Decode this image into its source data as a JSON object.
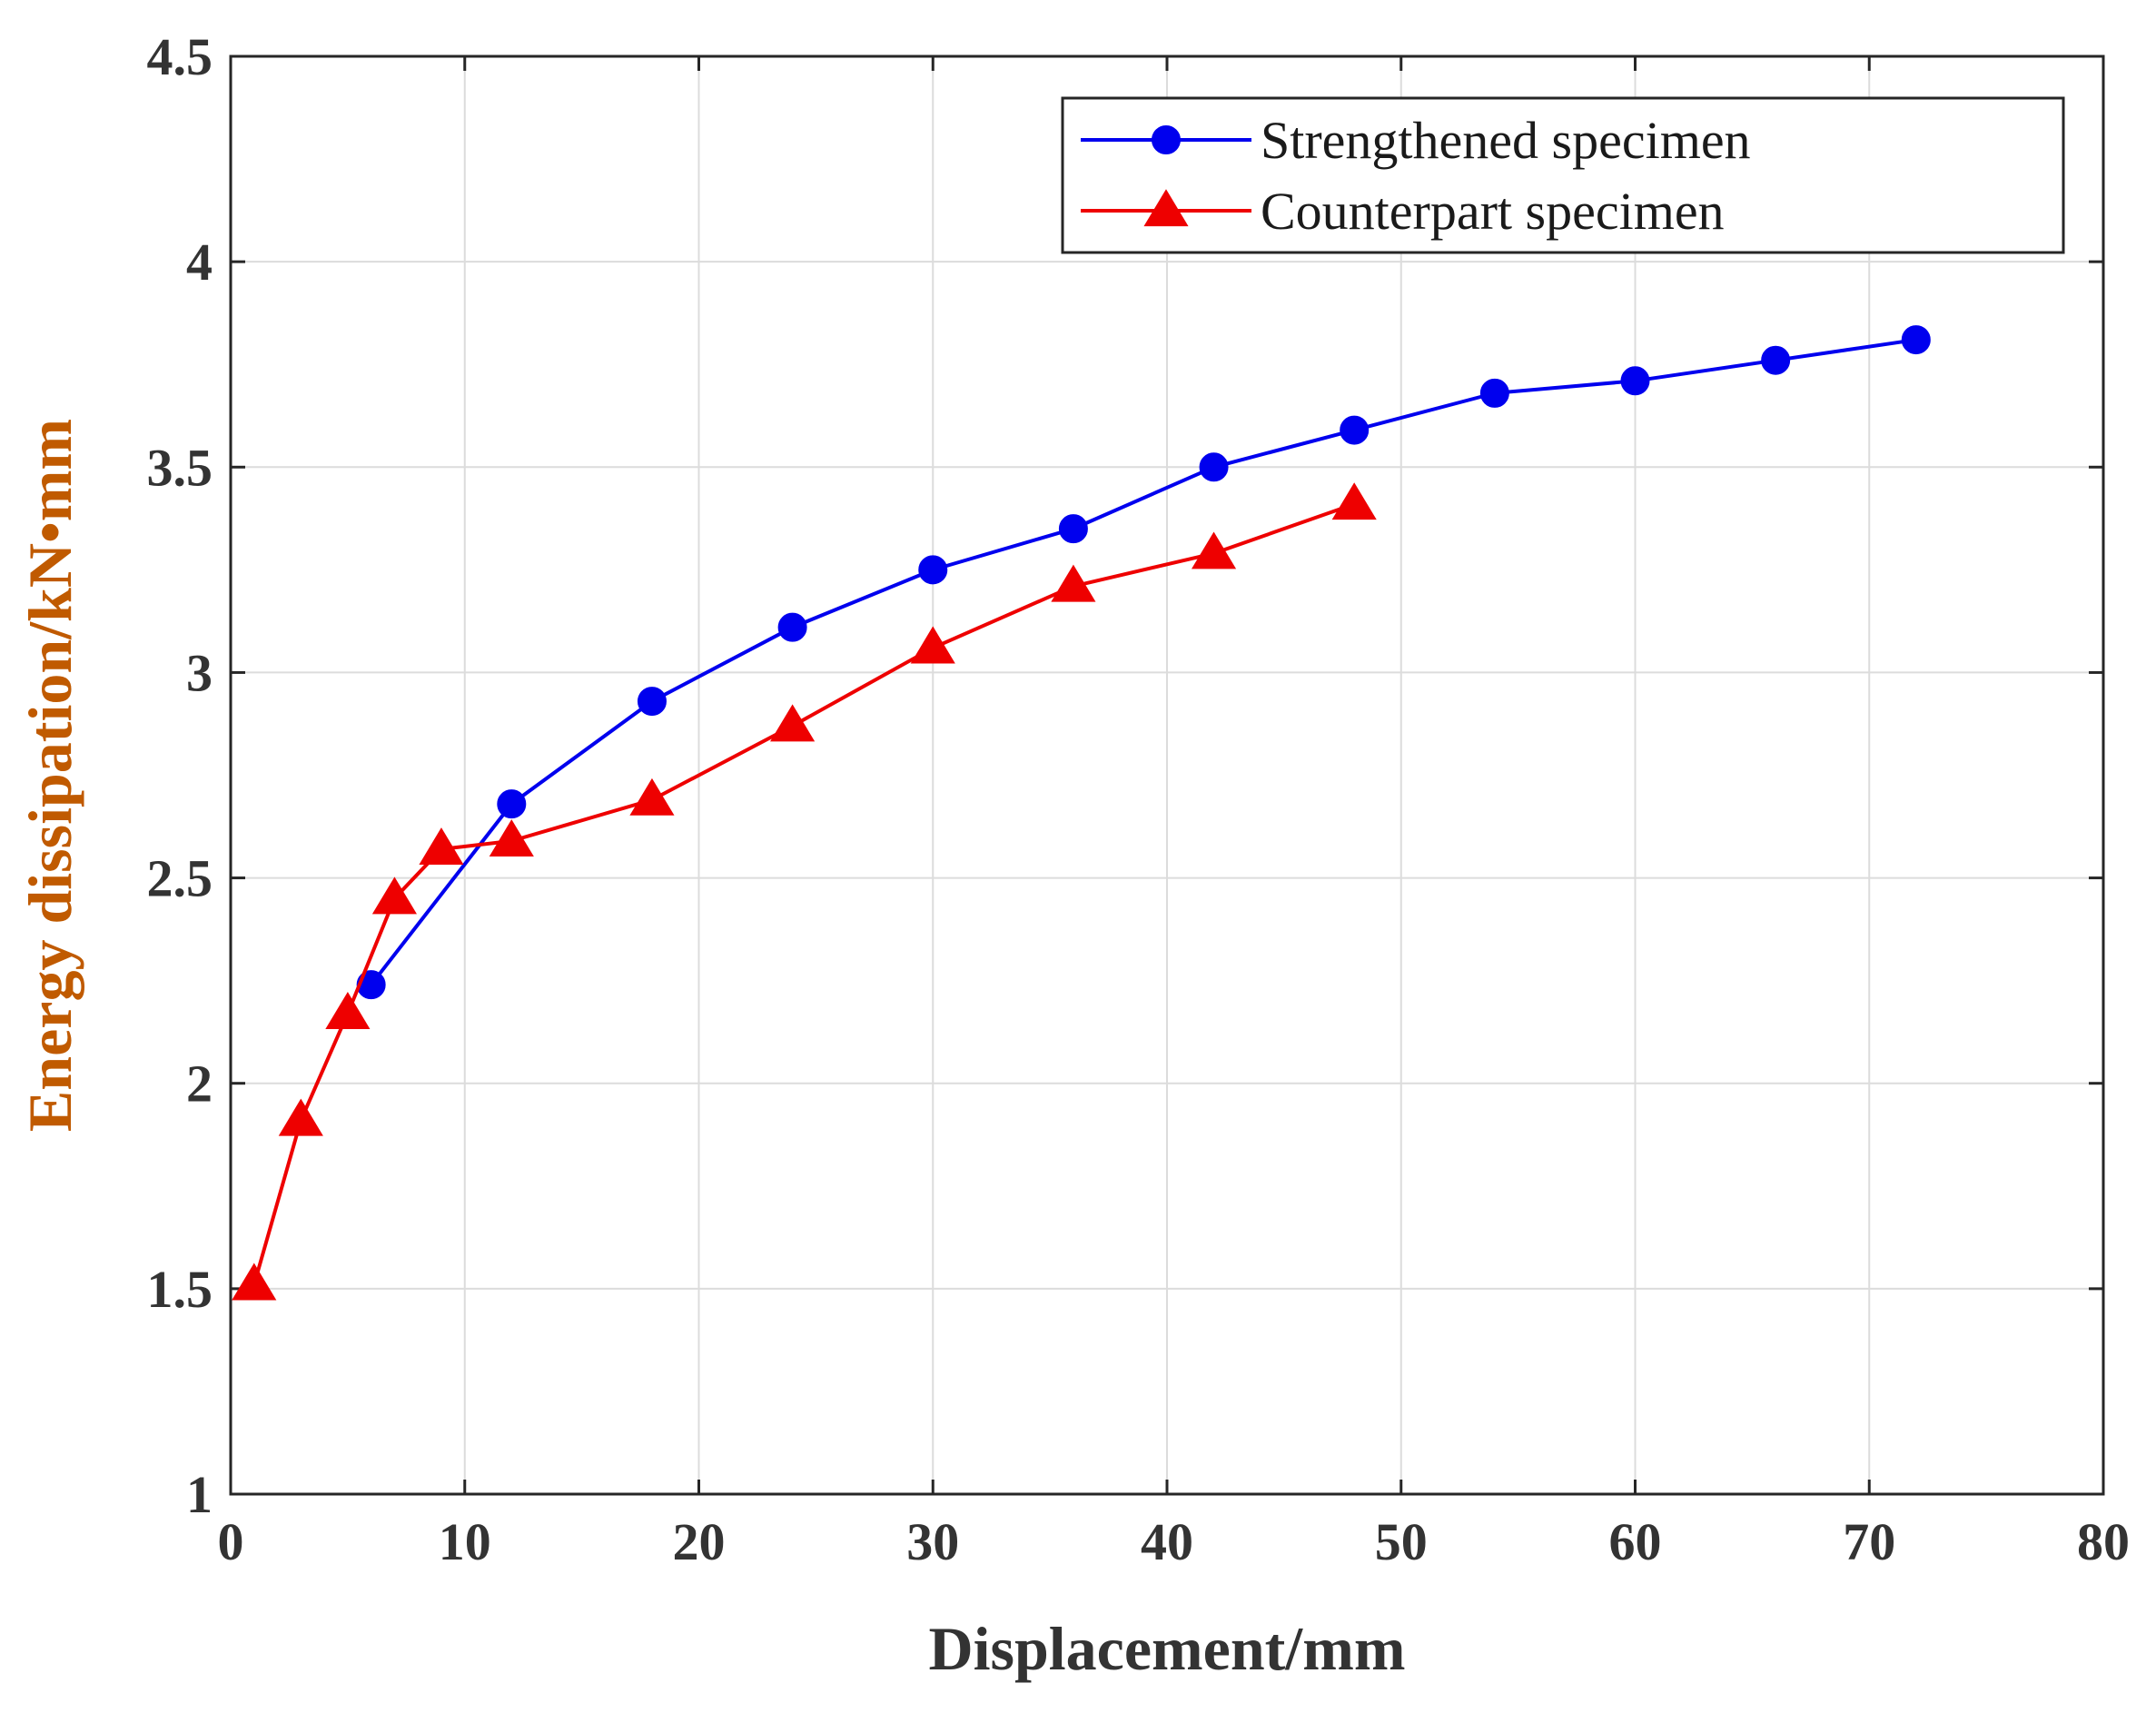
{
  "chart_data": {
    "type": "line",
    "title": "",
    "xlabel": "Displacement/mm",
    "ylabel": "Energy dissipation/kN•mm",
    "xlim": [
      0,
      80
    ],
    "ylim": [
      1,
      4.5
    ],
    "xticks": [
      "0",
      "10",
      "20",
      "30",
      "40",
      "50",
      "60",
      "70",
      "80"
    ],
    "yticks": [
      "1",
      "1.5",
      "2",
      "2.5",
      "3",
      "3.5",
      "4",
      "4.5"
    ],
    "grid": true,
    "legend_position": "top-right",
    "series": [
      {
        "name": "Strengthened specimen",
        "color": "#0000ee",
        "marker": "circle",
        "x": [
          6,
          12,
          18,
          24,
          30,
          36,
          42,
          48,
          54,
          60,
          66,
          72
        ],
        "y": [
          2.24,
          2.68,
          2.93,
          3.11,
          3.25,
          3.35,
          3.5,
          3.59,
          3.68,
          3.71,
          3.76,
          3.81
        ]
      },
      {
        "name": "Counterpart specimen",
        "color": "#ee0000",
        "marker": "triangle",
        "x": [
          1,
          3,
          5,
          7,
          9,
          12,
          18,
          24,
          30,
          36,
          42,
          48
        ],
        "y": [
          1.51,
          1.91,
          2.17,
          2.45,
          2.57,
          2.59,
          2.69,
          2.87,
          3.06,
          3.21,
          3.29,
          3.41
        ]
      }
    ]
  }
}
